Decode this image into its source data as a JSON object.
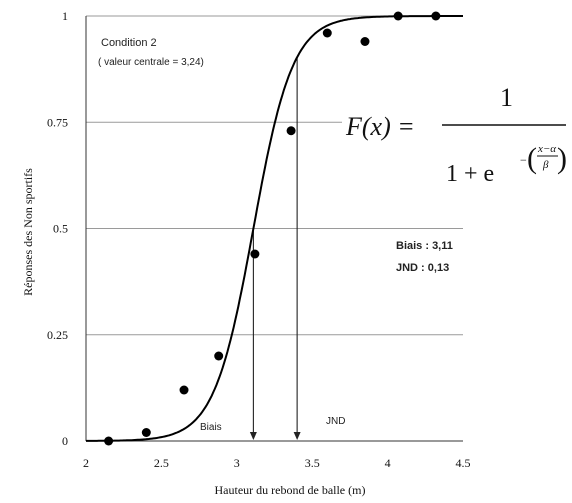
{
  "chart_data": {
    "type": "scatter",
    "xlabel": "Hauteur  du rebond de balle (m)",
    "ylabel": "Réponses des Non sportifs",
    "xlim": [
      2,
      4.5
    ],
    "ylim": [
      0,
      1
    ],
    "x_ticks": [
      "2",
      "2.5",
      "3",
      "3.5",
      "4",
      "4.5"
    ],
    "y_ticks": [
      "0",
      "0.25",
      "0.5",
      "0.75",
      "1"
    ],
    "grid": "horizontal",
    "series": [
      {
        "marker": "dot",
        "x": [
          2.15,
          2.4,
          2.65,
          2.88,
          3.12,
          3.36,
          3.6,
          3.85,
          4.07,
          4.32
        ],
        "y": [
          0.0,
          0.02,
          0.12,
          0.2,
          0.44,
          0.73,
          0.96,
          0.94,
          1.0,
          1.0
        ]
      }
    ],
    "fit_curve": {
      "type": "logistic",
      "alpha": 3.11,
      "beta": 0.13,
      "color": "#000000"
    },
    "annotations": {
      "condition_title": "Condition 2",
      "condition_subtitle": "( valeur centrale = 3,24)",
      "bias_stat": "Biais : 3,11",
      "jnd_stat": "JND : 0,13",
      "bias_label": "Biais",
      "jnd_label": "JND",
      "bias_x": 3.11,
      "jnd_x": 3.4
    },
    "formula": {
      "lhs": "F(x) =",
      "numerator": "1",
      "denominator_base": "1 + e",
      "exponent_sign": "−",
      "exponent_num": "x−α",
      "exponent_den": "β"
    }
  }
}
